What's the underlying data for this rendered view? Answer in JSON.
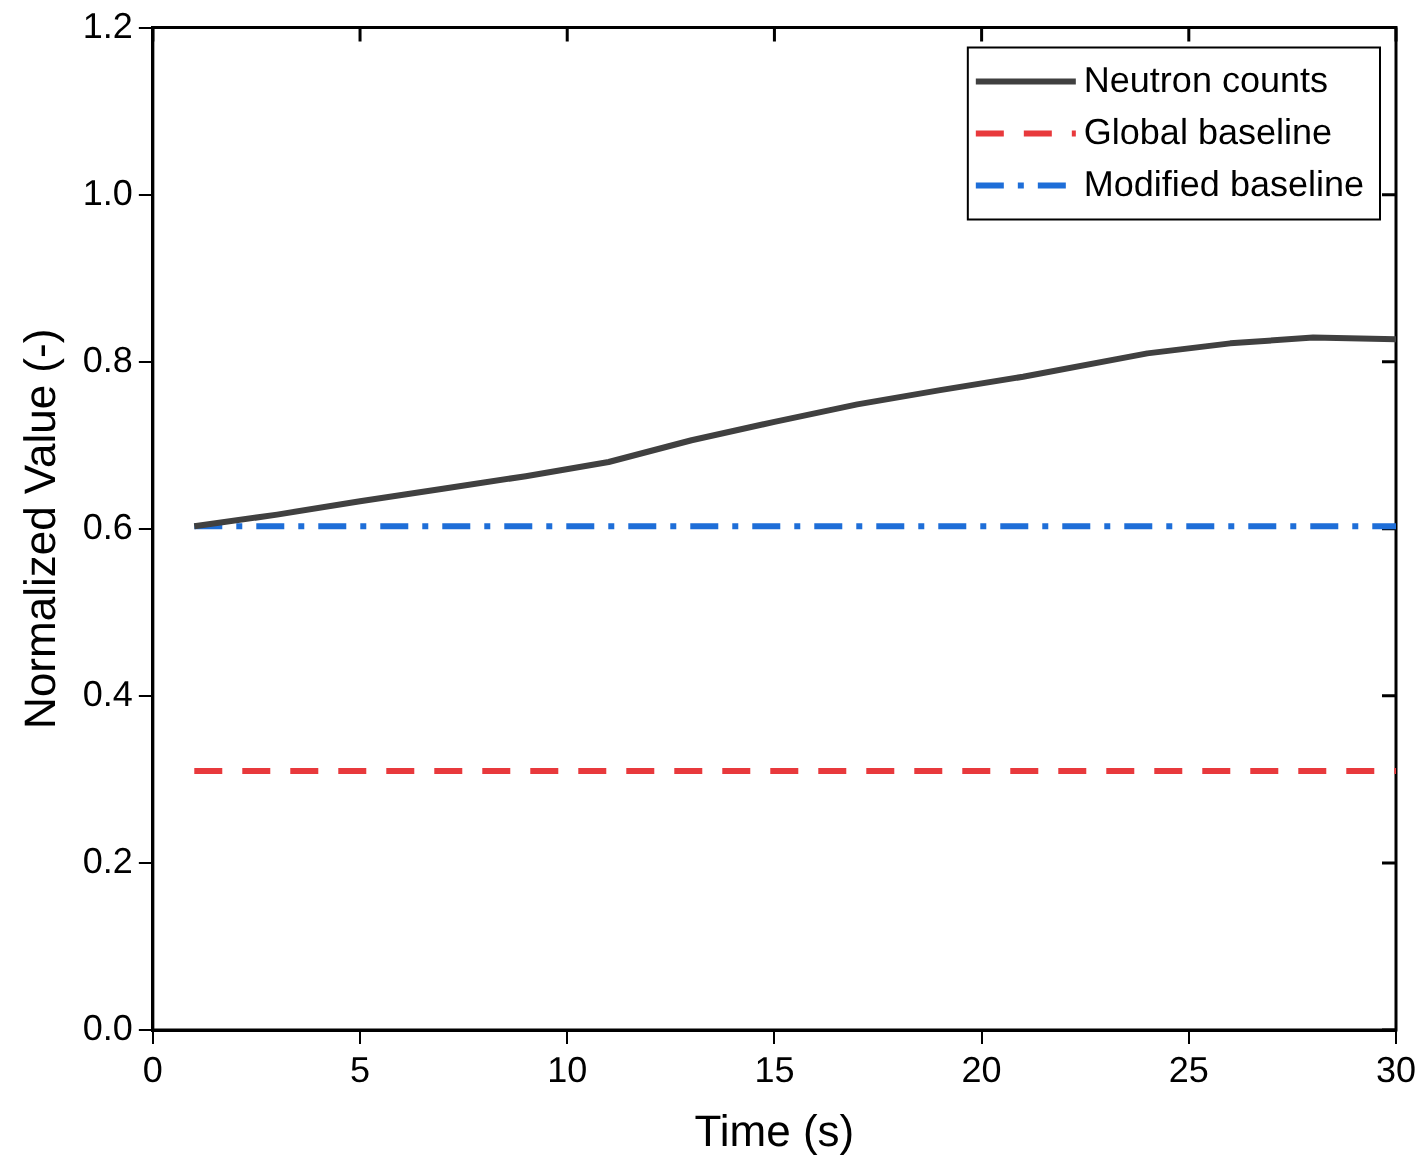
{
  "chart_data": {
    "type": "line",
    "xlabel": "Time (s)",
    "ylabel": "Normalized Value (-)",
    "xlim": [
      0,
      30
    ],
    "xticks": [
      0,
      5,
      10,
      15,
      20,
      25,
      30
    ],
    "ylim": [
      0,
      1.2
    ],
    "yticks": [
      {
        "value": 0,
        "label": "0.0"
      },
      0.2,
      0.4,
      0.6,
      0.8,
      {
        "value": 1,
        "label": "1.0"
      },
      1.2
    ],
    "grid": false,
    "legend": "top right",
    "marker": "none",
    "series": [
      {
        "name": "Neutron counts",
        "color": "#404040",
        "line_style": "solid",
        "x": [
          1,
          3,
          5,
          7,
          9,
          11,
          13,
          15,
          17,
          19,
          21,
          24,
          26,
          28,
          30
        ],
        "values": [
          0.603,
          0.617,
          0.633,
          0.648,
          0.663,
          0.68,
          0.706,
          0.728,
          0.749,
          0.766,
          0.782,
          0.81,
          0.822,
          0.829,
          0.827
        ]
      },
      {
        "name": "Global baseline",
        "color": "#e8393c",
        "line_style": "dashed",
        "x": [
          1,
          30
        ],
        "values": [
          0.31,
          0.31
        ]
      },
      {
        "name": "Modified baseline",
        "color": "#1e6ed8",
        "line_style": "dashdot",
        "x": [
          1,
          30
        ],
        "values": [
          0.603,
          0.603
        ]
      }
    ]
  }
}
